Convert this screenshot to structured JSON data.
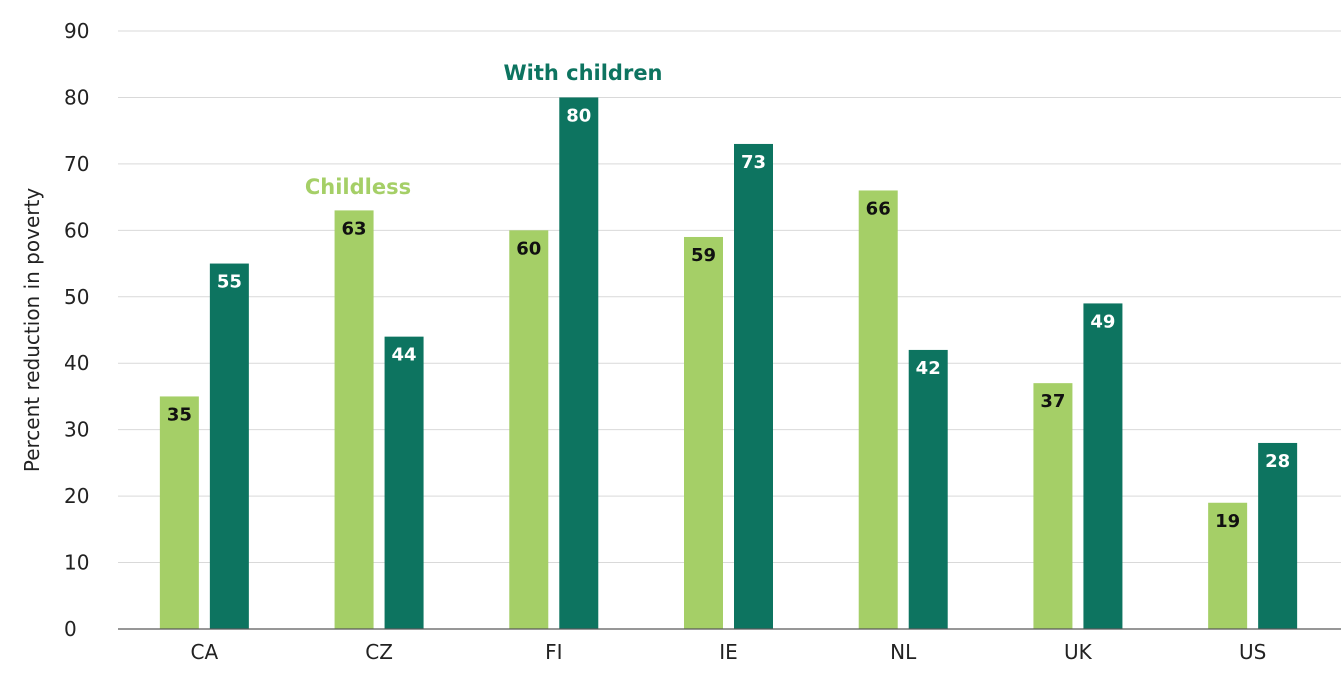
{
  "chart_data": {
    "type": "bar",
    "title": "",
    "xlabel": "",
    "ylabel": "Percent  reduction  in poverty",
    "ylim": [
      0,
      90
    ],
    "yticks": [
      0,
      10,
      20,
      30,
      40,
      50,
      60,
      70,
      80,
      90
    ],
    "grid": true,
    "categories": [
      "CA",
      "CZ",
      "FI",
      "IE",
      "NL",
      "UK",
      "US"
    ],
    "series": [
      {
        "name": "Childless",
        "color": "#a5cf67",
        "label_color": "#111111",
        "values": [
          35,
          63,
          60,
          59,
          66,
          37,
          19
        ]
      },
      {
        "name": "With children",
        "color": "#0d7460",
        "label_color": "#ffffff",
        "values": [
          55,
          44,
          80,
          73,
          42,
          49,
          28
        ]
      }
    ]
  }
}
